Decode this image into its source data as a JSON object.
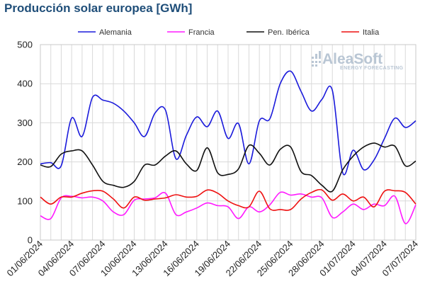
{
  "header": {
    "title": "Producción solar europea [GWh]"
  },
  "watermark": {
    "brand": "AleaSoft",
    "tagline": "ENERGY FORECASTING",
    "color": "#b9c6d4"
  },
  "chart_data": {
    "type": "line",
    "title": "Producción solar europea [GWh]",
    "xlabel": "",
    "ylabel": "",
    "ylim": [
      0,
      500
    ],
    "yticks": [
      0,
      100,
      200,
      300,
      400,
      500
    ],
    "grid": true,
    "legend_position": "top",
    "x": [
      "01/06/2024",
      "02/06/2024",
      "03/06/2024",
      "04/06/2024",
      "05/06/2024",
      "06/06/2024",
      "07/06/2024",
      "08/06/2024",
      "09/06/2024",
      "10/06/2024",
      "11/06/2024",
      "12/06/2024",
      "13/06/2024",
      "14/06/2024",
      "15/06/2024",
      "16/06/2024",
      "17/06/2024",
      "18/06/2024",
      "19/06/2024",
      "20/06/2024",
      "21/06/2024",
      "22/06/2024",
      "23/06/2024",
      "24/06/2024",
      "25/06/2024",
      "26/06/2024",
      "27/06/2024",
      "28/06/2024",
      "29/06/2024",
      "30/06/2024",
      "01/07/2024",
      "02/07/2024",
      "03/07/2024",
      "04/07/2024",
      "05/07/2024",
      "06/07/2024",
      "07/07/2024"
    ],
    "xtick_labels": [
      "01/06/2024",
      "04/06/2024",
      "07/06/2024",
      "10/06/2024",
      "13/06/2024",
      "16/06/2024",
      "19/06/2024",
      "22/06/2024",
      "25/06/2024",
      "28/06/2024",
      "01/07/2024",
      "04/07/2024",
      "07/07/2024"
    ],
    "series": [
      {
        "name": "Alemania",
        "color": "#1a1adb",
        "values": [
          195,
          198,
          190,
          312,
          265,
          365,
          358,
          350,
          330,
          300,
          265,
          325,
          332,
          208,
          268,
          315,
          290,
          330,
          260,
          298,
          195,
          305,
          310,
          400,
          432,
          380,
          330,
          360,
          383,
          172,
          230,
          180,
          205,
          260,
          312,
          288,
          305
        ]
      },
      {
        "name": "Francia",
        "color": "#ff1aff",
        "values": [
          62,
          55,
          108,
          112,
          108,
          110,
          100,
          72,
          65,
          102,
          105,
          108,
          120,
          65,
          72,
          82,
          95,
          88,
          85,
          55,
          85,
          72,
          90,
          122,
          115,
          118,
          110,
          108,
          58,
          72,
          92,
          78,
          92,
          88,
          112,
          42,
          90
        ]
      },
      {
        "name": "Pen. Ibérica",
        "color": "#111111",
        "values": [
          192,
          188,
          220,
          228,
          228,
          192,
          150,
          140,
          135,
          150,
          192,
          192,
          215,
          228,
          195,
          178,
          236,
          172,
          168,
          182,
          242,
          222,
          192,
          232,
          238,
          175,
          165,
          140,
          125,
          180,
          215,
          238,
          248,
          238,
          240,
          190,
          202
        ]
      },
      {
        "name": "Italia",
        "color": "#ee1111",
        "values": [
          110,
          92,
          110,
          110,
          120,
          126,
          125,
          105,
          82,
          110,
          102,
          105,
          108,
          116,
          110,
          112,
          128,
          120,
          100,
          88,
          85,
          125,
          80,
          78,
          78,
          105,
          122,
          128,
          102,
          118,
          100,
          110,
          85,
          125,
          126,
          122,
          92
        ]
      }
    ]
  }
}
